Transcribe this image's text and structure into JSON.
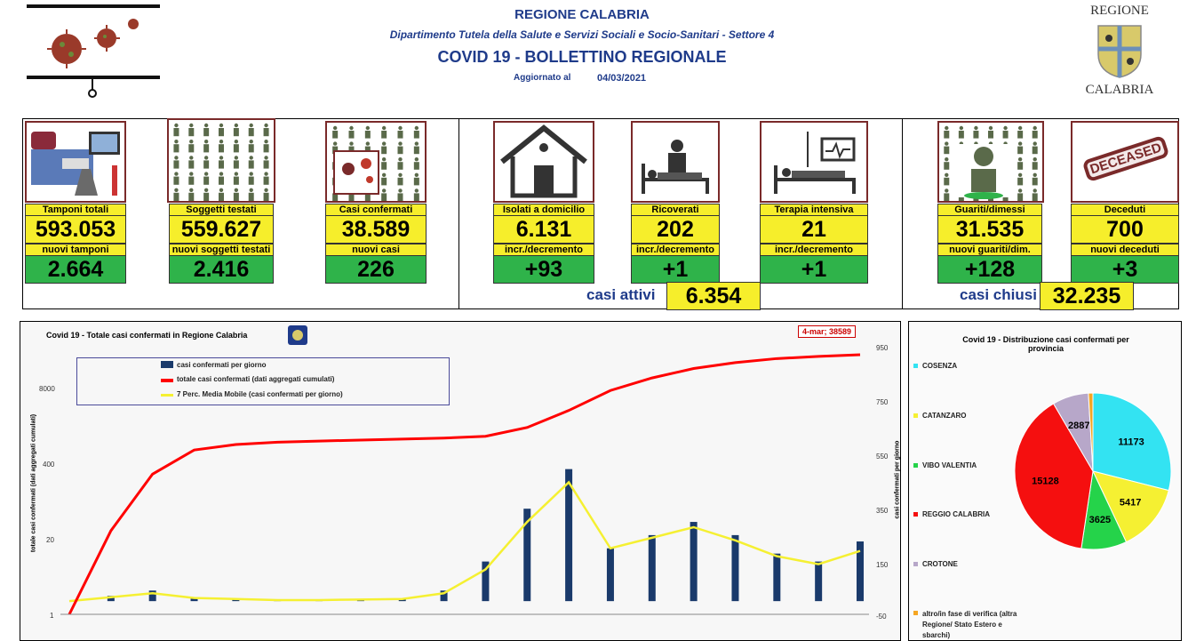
{
  "header": {
    "region": "REGIONE CALABRIA",
    "department": "Dipartimento Tutela della Salute e Servizi Sociali e Socio-Sanitari - Settore 4",
    "title": "COVID 19 - BOLLETTINO REGIONALE",
    "updated_label": "Aggiornato al",
    "updated_date": "04/03/2021"
  },
  "logo": {
    "top": "REGIONE",
    "bottom": "CALABRIA"
  },
  "cards": {
    "tamponi": {
      "label": "Tamponi totali",
      "value": "593.053",
      "sub_label": "nuovi tamponi",
      "sub_value": "2.664"
    },
    "soggetti": {
      "label": "Soggetti testati",
      "value": "559.627",
      "sub_label": "nuovi soggetti testati",
      "sub_value": "2.416"
    },
    "casi": {
      "label": "Casi confermati",
      "value": "38.589",
      "sub_label": "nuovi casi",
      "sub_value": "226"
    },
    "isolati": {
      "label": "Isolati a domicilio",
      "value": "6.131",
      "sub_label": "incr./decremento",
      "sub_value": "+93"
    },
    "ricoverati": {
      "label": "Ricoverati",
      "value": "202",
      "sub_label": "incr./decremento",
      "sub_value": "+1"
    },
    "terapia": {
      "label": "Terapia intensiva",
      "value": "21",
      "sub_label": "incr./decremento",
      "sub_value": "+1"
    },
    "guariti": {
      "label": "Guariti/dimessi",
      "value": "31.535",
      "sub_label": "nuovi guariti/dim.",
      "sub_value": "+128"
    },
    "deceduti": {
      "label": "Deceduti",
      "value": "700",
      "sub_label": "nuovi deceduti",
      "sub_value": "+3"
    }
  },
  "totals": {
    "attivi_label": "casi attivi",
    "attivi_value": "6.354",
    "chiusi_label": "casi chiusi",
    "chiusi_value": "32.235",
    "deceased_stamp": "DECEASED"
  },
  "colors": {
    "yellow": "#f6ee2b",
    "green": "#2fb34a",
    "navy": "#1a3a6b",
    "red": "#ff0000",
    "mavg": "#f5f032"
  },
  "chart_data": [
    {
      "type": "bar",
      "title": "Covid 19 - Totale casi confermati in Regione Calabria",
      "annotation": "4-mar; 38589",
      "ylabel": "totale casi confermati (dati aggregati cumulati)",
      "y2label": "casi confermati per giorno",
      "yticks": [
        "8000",
        "400",
        "20",
        "1"
      ],
      "y2ticks": [
        "950",
        "750",
        "550",
        "350",
        "150",
        "-50"
      ],
      "scale": "log",
      "legend": [
        "casi confermati per giorno",
        "totale casi confermati (dati aggregati cumulati)",
        "7 Perc. Media Mobile (casi confermati per giorno)"
      ],
      "series": [
        {
          "name": "totale casi confermati (dati aggregati cumulati)",
          "values": [
            1,
            30,
            300,
            800,
            1000,
            1100,
            1150,
            1200,
            1250,
            1300,
            1400,
            2000,
            4000,
            9000,
            15000,
            22000,
            28000,
            33000,
            36000,
            38589
          ]
        },
        {
          "name": "casi confermati per giorno",
          "values": [
            0,
            20,
            40,
            15,
            10,
            5,
            5,
            8,
            10,
            40,
            150,
            350,
            500,
            200,
            250,
            300,
            250,
            180,
            150,
            226
          ]
        },
        {
          "name": "7 Perc. Media Mobile (casi confermati per giorno)",
          "values": [
            0,
            15,
            30,
            12,
            8,
            4,
            4,
            6,
            8,
            30,
            120,
            300,
            450,
            200,
            240,
            280,
            230,
            170,
            140,
            190
          ]
        }
      ]
    },
    {
      "type": "pie",
      "title": "Covid 19 - Distribuzione casi confermati per provincia",
      "categories": [
        "COSENZA",
        "CATANZARO",
        "VIBO VALENTIA",
        "REGGIO CALABRIA",
        "CROTONE",
        "altro/in fase di verifica (altra Regione/ Stato Estero e sbarchi)"
      ],
      "values": [
        11173,
        5417,
        3625,
        15128,
        2887,
        359
      ],
      "colors": [
        "#33e3f2",
        "#f5f032",
        "#25d34a",
        "#f50f0f",
        "#b7a7c9",
        "#f5a623"
      ]
    }
  ]
}
